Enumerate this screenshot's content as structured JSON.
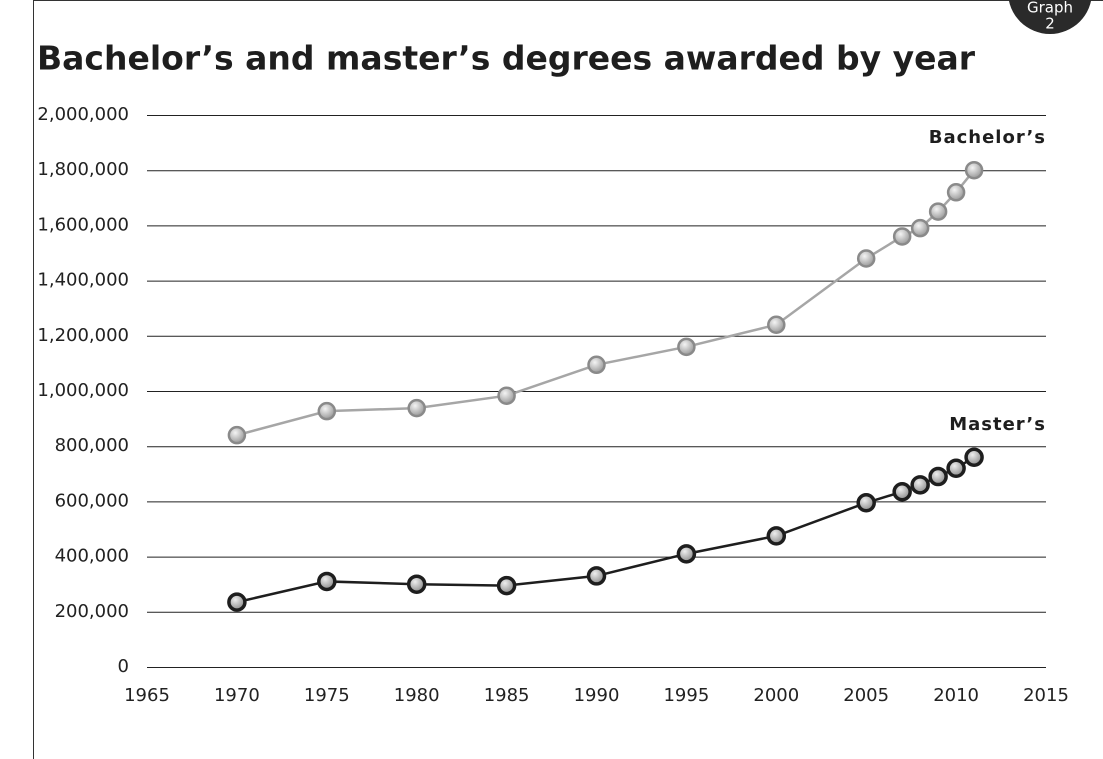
{
  "badge": {
    "line1": "Graph",
    "line2": "2"
  },
  "chart_data": {
    "type": "line",
    "title": "Bachelor’s and master’s degrees awarded by year",
    "x": [
      1970,
      1975,
      1980,
      1985,
      1990,
      1995,
      2000,
      2005,
      2007,
      2008,
      2009,
      2010,
      2011
    ],
    "series": [
      {
        "name": "Bachelor’s",
        "color": "#a6a6a6",
        "marker_stroke": "#8a8a8a",
        "values": [
          840000,
          927000,
          938000,
          983000,
          1095000,
          1160000,
          1240000,
          1480000,
          1560000,
          1590000,
          1650000,
          1720000,
          1800000
        ]
      },
      {
        "name": "Master’s",
        "color": "#1e1e1e",
        "marker_stroke": "#1e1e1e",
        "values": [
          235000,
          310000,
          300000,
          295000,
          330000,
          410000,
          475000,
          595000,
          635000,
          660000,
          690000,
          720000,
          760000
        ]
      }
    ],
    "xlim": [
      1965,
      2015
    ],
    "xticks": [
      1965,
      1970,
      1975,
      1980,
      1985,
      1990,
      1995,
      2000,
      2005,
      2010,
      2015
    ],
    "ylim": [
      0,
      2000000
    ],
    "yticks": [
      0,
      {
        "value": 200000,
        "label": "200,000"
      },
      {
        "value": 400000,
        "label": "400,000"
      },
      {
        "value": 600000,
        "label": "600,000"
      },
      {
        "value": 800000,
        "label": "800,000"
      },
      {
        "value": 1000000,
        "label": "1,000,000"
      },
      {
        "value": 1200000,
        "label": "1,200,000"
      },
      {
        "value": 1400000,
        "label": "1,400,000"
      },
      {
        "value": 1600000,
        "label": "1,600,000"
      },
      {
        "value": 1800000,
        "label": "1,800,000"
      },
      {
        "value": 2000000,
        "label": "2,000,000"
      }
    ],
    "grid": true
  }
}
